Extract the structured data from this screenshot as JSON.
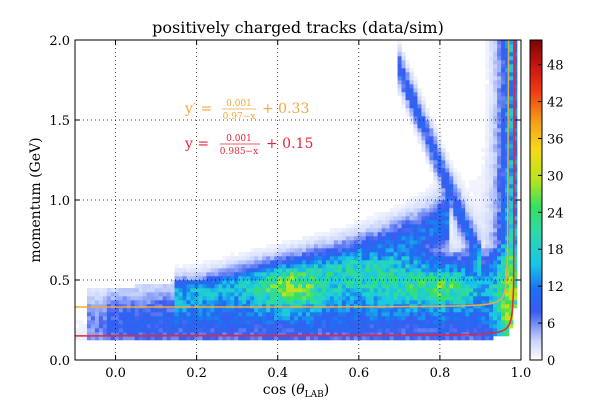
{
  "chart_data": {
    "type": "heatmap",
    "title": "positively charged tracks (data/sim)",
    "xlabel_prefix": "cos",
    "xlabel_theta": "θ",
    "xlabel_sub": "LAB",
    "ylabel": "momentum (GeV)",
    "xlim": [
      -0.1,
      1.0
    ],
    "ylim": [
      0.0,
      2.0
    ],
    "x_ticks": [
      0.0,
      0.2,
      0.4,
      0.6,
      0.8,
      1.0
    ],
    "x_tick_labels": [
      "0.0",
      "0.2",
      "0.4",
      "0.6",
      "0.8",
      "1.0"
    ],
    "y_ticks": [
      0.0,
      0.5,
      1.0,
      1.5,
      2.0
    ],
    "y_tick_labels": [
      "0.0",
      "0.5",
      "1.0",
      "1.5",
      "2.0"
    ],
    "grid": true,
    "colorbar": {
      "min": 0,
      "max": 52,
      "ticks": [
        0,
        6,
        12,
        18,
        24,
        30,
        36,
        42,
        48
      ],
      "tick_labels": [
        "0",
        "6",
        "12",
        "18",
        "24",
        "30",
        "36",
        "42",
        "48"
      ]
    },
    "curves": [
      {
        "label_lhs": "y′ =",
        "num": "0.001",
        "den": "0.97−x",
        "offset_text": "+ 0.33",
        "a": 0.001,
        "b": 0.97,
        "c": 0.33,
        "color": "#f2a83a"
      },
      {
        "label_lhs": "y =",
        "num": "0.001",
        "den": "0.985−x",
        "offset_text": "+ 0.15",
        "a": 0.001,
        "b": 0.985,
        "c": 0.15,
        "color": "#e8253a"
      }
    ]
  }
}
